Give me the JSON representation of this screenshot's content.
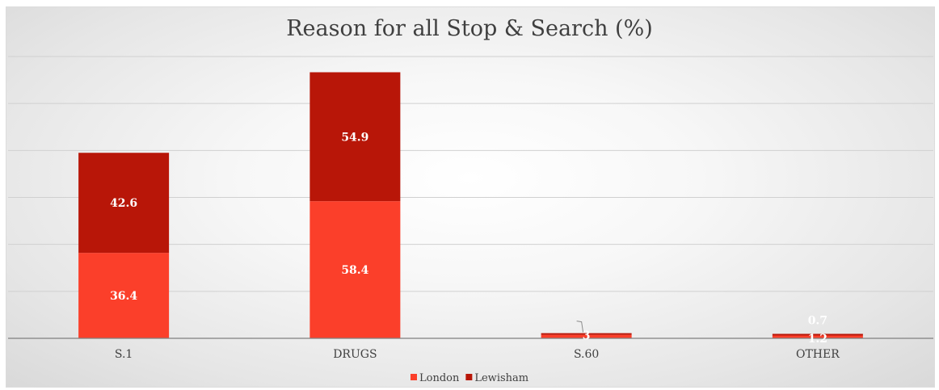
{
  "chart_data": {
    "type": "bar",
    "stacked": true,
    "title": "Reason for all Stop & Search (%)",
    "categories": [
      "S.1",
      "DRUGS",
      "S.60",
      "OTHER"
    ],
    "series": [
      {
        "name": "London",
        "color": "#fb3f2a",
        "values": [
          36.4,
          58.4,
          1.5,
          1.2
        ],
        "labels": [
          "36.4",
          "58.4",
          "",
          "1.2"
        ]
      },
      {
        "name": "Lewisham",
        "color": "#b81608",
        "values": [
          42.6,
          54.9,
          0.7,
          0.7
        ],
        "labels": [
          "42.6",
          "54.9",
          "",
          "0.7"
        ]
      }
    ],
    "s60_label": "3",
    "ylim": [
      0,
      120
    ],
    "grid": true,
    "legend": "bottom"
  }
}
